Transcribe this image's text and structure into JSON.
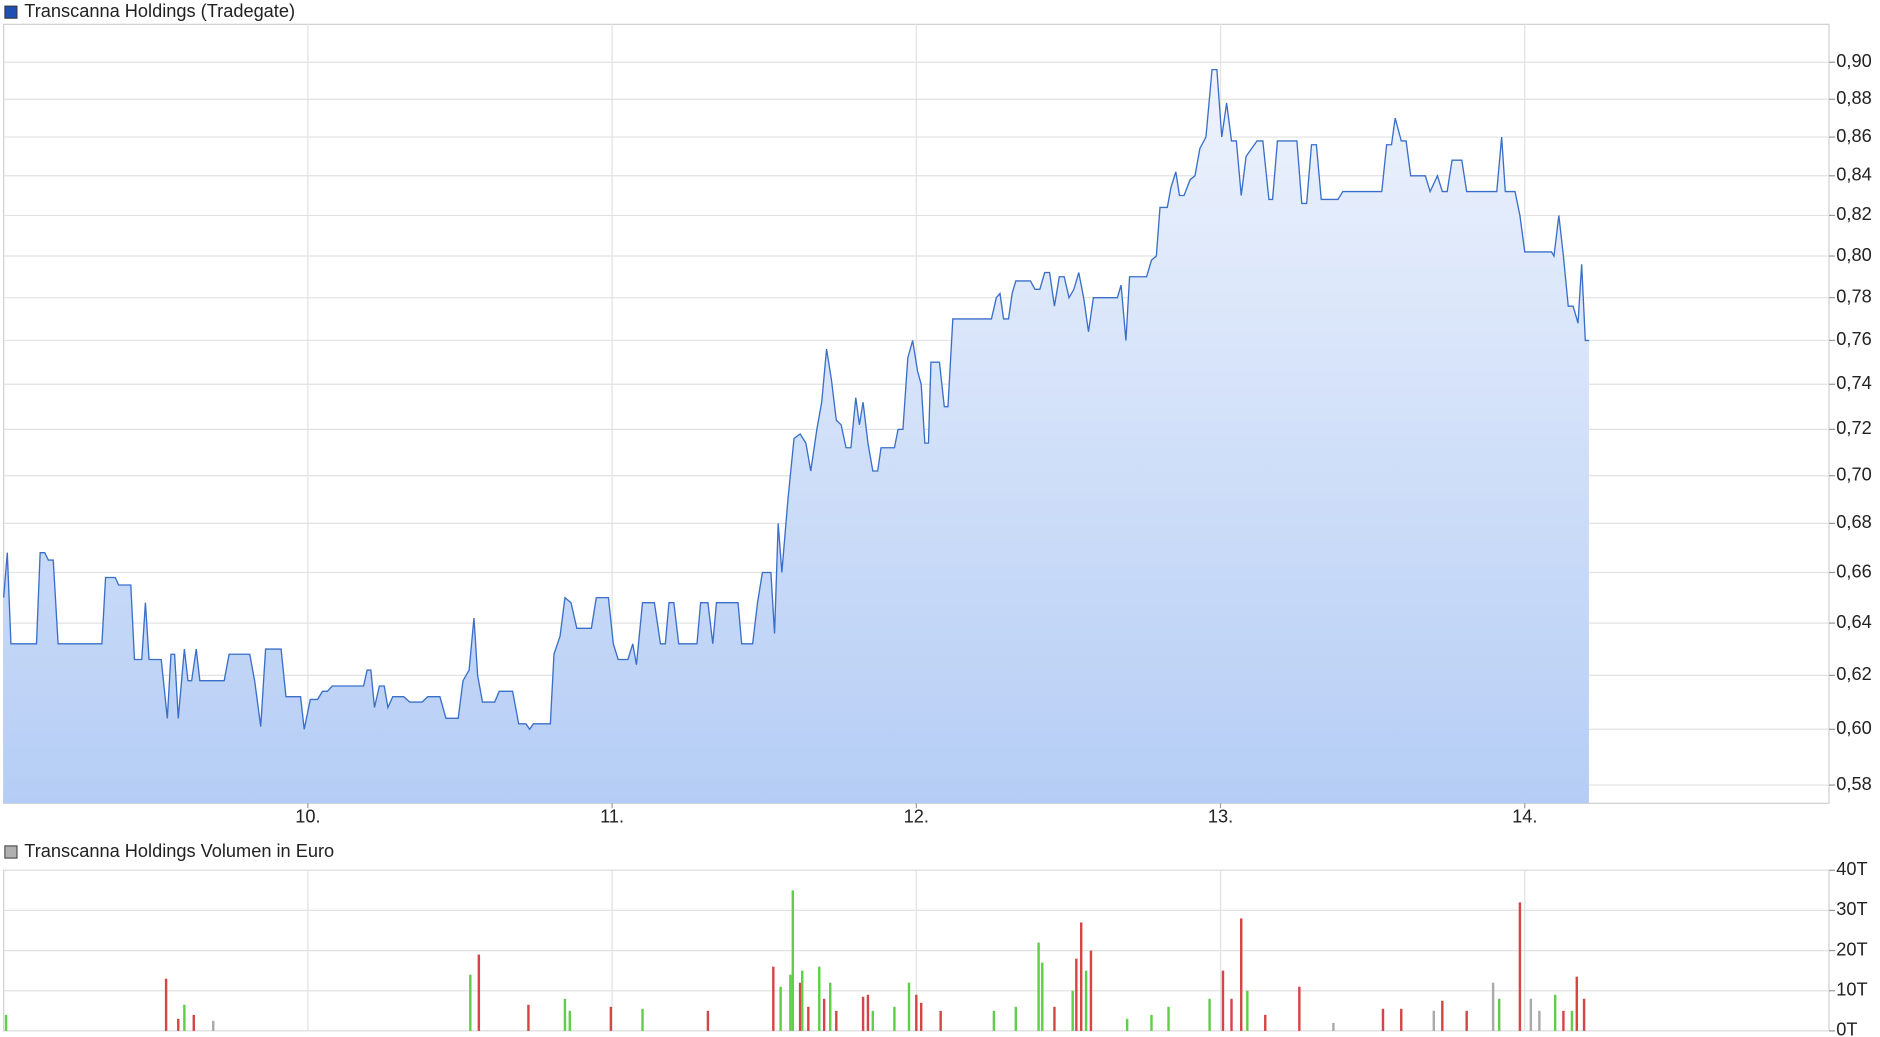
{
  "chart_data": [
    {
      "type": "area",
      "title": "Transcanna Holdings (Tradegate)",
      "legend_color": "#1f4fb0",
      "color": "#3a6fc9",
      "fill_top": "#eef3fd",
      "fill_bottom": "#b5cdf5",
      "log": true,
      "grid": true,
      "x": [
        9.0,
        9.012,
        9.024,
        9.108,
        9.12,
        9.135,
        9.147,
        9.163,
        9.179,
        9.323,
        9.335,
        9.367,
        9.378,
        9.418,
        9.43,
        9.454,
        9.466,
        9.478,
        9.518,
        9.538,
        9.55,
        9.562,
        9.574,
        9.594,
        9.606,
        9.618,
        9.633,
        9.645,
        9.725,
        9.741,
        9.809,
        9.825,
        9.845,
        9.861,
        9.912,
        9.928,
        9.976,
        9.988,
        10.008,
        10.032,
        10.048,
        10.064,
        10.08,
        10.183,
        10.195,
        10.207,
        10.219,
        10.235,
        10.251,
        10.263,
        10.279,
        10.315,
        10.335,
        10.375,
        10.394,
        10.434,
        10.454,
        10.494,
        10.51,
        10.53,
        10.546,
        10.558,
        10.574,
        10.614,
        10.629,
        10.673,
        10.693,
        10.717,
        10.729,
        10.741,
        10.797,
        10.809,
        10.829,
        10.845,
        10.865,
        10.884,
        10.932,
        10.948,
        10.988,
        11.004,
        11.02,
        11.052,
        11.068,
        11.08,
        11.1,
        11.139,
        11.159,
        11.175,
        11.187,
        11.203,
        11.219,
        11.279,
        11.291,
        11.315,
        11.331,
        11.343,
        11.414,
        11.426,
        11.462,
        11.478,
        11.494,
        11.522,
        11.534,
        11.546,
        11.558,
        11.578,
        11.598,
        11.618,
        11.637,
        11.653,
        11.673,
        11.689,
        11.705,
        11.721,
        11.737,
        11.753,
        11.769,
        11.785,
        11.801,
        11.813,
        11.825,
        11.841,
        11.857,
        11.873,
        11.884,
        11.928,
        11.94,
        11.956,
        11.972,
        11.988,
        12.004,
        12.016,
        12.028,
        12.04,
        12.048,
        12.076,
        12.092,
        12.104,
        12.12,
        12.247,
        12.263,
        12.275,
        12.287,
        12.303,
        12.315,
        12.327,
        12.375,
        12.39,
        12.406,
        12.422,
        12.438,
        12.454,
        12.47,
        12.486,
        12.502,
        12.518,
        12.534,
        12.55,
        12.566,
        12.582,
        12.661,
        12.673,
        12.689,
        12.701,
        12.757,
        12.773,
        12.789,
        12.801,
        12.825,
        12.837,
        12.853,
        12.865,
        12.88,
        12.9,
        12.916,
        12.932,
        12.952,
        12.972,
        12.988,
        13.004,
        13.02,
        13.036,
        13.052,
        13.068,
        13.084,
        13.12,
        13.139,
        13.159,
        13.171,
        13.187,
        13.251,
        13.267,
        13.283,
        13.299,
        13.315,
        13.331,
        13.386,
        13.402,
        13.53,
        13.546,
        13.562,
        13.574,
        13.594,
        13.61,
        13.625,
        13.673,
        13.689,
        13.713,
        13.729,
        13.745,
        13.761,
        13.793,
        13.809,
        13.908,
        13.924,
        13.936,
        13.968,
        13.984,
        14.0,
        14.088,
        14.096,
        14.112,
        14.127,
        14.143,
        14.159,
        14.175,
        14.187,
        14.199,
        14.211
      ],
      "values": [
        0.65,
        0.668,
        0.632,
        0.632,
        0.668,
        0.668,
        0.665,
        0.665,
        0.632,
        0.632,
        0.658,
        0.658,
        0.655,
        0.655,
        0.626,
        0.626,
        0.648,
        0.626,
        0.626,
        0.604,
        0.628,
        0.628,
        0.604,
        0.63,
        0.618,
        0.618,
        0.63,
        0.618,
        0.618,
        0.628,
        0.628,
        0.618,
        0.601,
        0.63,
        0.63,
        0.612,
        0.612,
        0.6,
        0.611,
        0.611,
        0.614,
        0.614,
        0.616,
        0.616,
        0.622,
        0.622,
        0.608,
        0.616,
        0.616,
        0.608,
        0.612,
        0.612,
        0.61,
        0.61,
        0.612,
        0.612,
        0.604,
        0.604,
        0.618,
        0.622,
        0.642,
        0.62,
        0.61,
        0.61,
        0.614,
        0.614,
        0.602,
        0.602,
        0.6,
        0.602,
        0.602,
        0.628,
        0.635,
        0.65,
        0.648,
        0.638,
        0.638,
        0.65,
        0.65,
        0.632,
        0.626,
        0.626,
        0.632,
        0.624,
        0.648,
        0.648,
        0.632,
        0.632,
        0.648,
        0.648,
        0.632,
        0.632,
        0.648,
        0.648,
        0.632,
        0.648,
        0.648,
        0.632,
        0.632,
        0.648,
        0.66,
        0.66,
        0.636,
        0.68,
        0.66,
        0.69,
        0.716,
        0.718,
        0.714,
        0.702,
        0.72,
        0.732,
        0.756,
        0.742,
        0.724,
        0.722,
        0.712,
        0.712,
        0.734,
        0.722,
        0.732,
        0.714,
        0.702,
        0.702,
        0.712,
        0.712,
        0.72,
        0.72,
        0.752,
        0.76,
        0.746,
        0.74,
        0.714,
        0.714,
        0.75,
        0.75,
        0.73,
        0.73,
        0.77,
        0.77,
        0.78,
        0.782,
        0.77,
        0.77,
        0.782,
        0.788,
        0.788,
        0.784,
        0.784,
        0.792,
        0.792,
        0.776,
        0.79,
        0.79,
        0.78,
        0.784,
        0.792,
        0.78,
        0.764,
        0.78,
        0.78,
        0.786,
        0.76,
        0.79,
        0.79,
        0.798,
        0.8,
        0.824,
        0.824,
        0.834,
        0.842,
        0.83,
        0.83,
        0.838,
        0.84,
        0.854,
        0.86,
        0.896,
        0.896,
        0.86,
        0.878,
        0.858,
        0.858,
        0.83,
        0.85,
        0.858,
        0.858,
        0.828,
        0.828,
        0.858,
        0.858,
        0.826,
        0.826,
        0.856,
        0.856,
        0.828,
        0.828,
        0.832,
        0.832,
        0.856,
        0.856,
        0.87,
        0.858,
        0.858,
        0.84,
        0.84,
        0.832,
        0.84,
        0.832,
        0.832,
        0.848,
        0.848,
        0.832,
        0.832,
        0.86,
        0.832,
        0.832,
        0.82,
        0.802,
        0.802,
        0.8,
        0.82,
        0.8,
        0.776,
        0.776,
        0.768,
        0.796,
        0.76,
        0.76
      ],
      "xlim": [
        9,
        15
      ],
      "xticks": [
        {
          "value": 10,
          "label": "10."
        },
        {
          "value": 11,
          "label": "11."
        },
        {
          "value": 12,
          "label": "12."
        },
        {
          "value": 13,
          "label": "13."
        },
        {
          "value": 14,
          "label": "14."
        }
      ],
      "ylim": [
        0.5736,
        0.921
      ],
      "yticks": [
        {
          "value": 0.58,
          "label": "0,58"
        },
        {
          "value": 0.6,
          "label": "0,60"
        },
        {
          "value": 0.62,
          "label": "0,62"
        },
        {
          "value": 0.64,
          "label": "0,64"
        },
        {
          "value": 0.66,
          "label": "0,66"
        },
        {
          "value": 0.68,
          "label": "0,68"
        },
        {
          "value": 0.7,
          "label": "0,70"
        },
        {
          "value": 0.72,
          "label": "0,72"
        },
        {
          "value": 0.74,
          "label": "0,74"
        },
        {
          "value": 0.76,
          "label": "0,76"
        },
        {
          "value": 0.78,
          "label": "0,78"
        },
        {
          "value": 0.8,
          "label": "0,80"
        },
        {
          "value": 0.82,
          "label": "0,82"
        },
        {
          "value": 0.84,
          "label": "0,84"
        },
        {
          "value": 0.86,
          "label": "0,86"
        },
        {
          "value": 0.88,
          "label": "0,88"
        },
        {
          "value": 0.9,
          "label": "0,90"
        }
      ]
    },
    {
      "type": "bar",
      "title": "Transcanna Holdings Volumen in Euro",
      "legend_color": "#b0b0b0",
      "grid": true,
      "x": [
        9.008,
        9.534,
        9.574,
        9.594,
        9.625,
        9.689,
        10.534,
        10.562,
        10.725,
        10.845,
        10.861,
        10.996,
        11.1,
        11.315,
        11.53,
        11.554,
        11.586,
        11.594,
        11.618,
        11.625,
        11.645,
        11.681,
        11.697,
        11.717,
        11.737,
        11.825,
        11.841,
        11.857,
        11.928,
        11.976,
        12.0,
        12.016,
        12.08,
        12.255,
        12.327,
        12.402,
        12.414,
        12.454,
        12.514,
        12.526,
        12.542,
        12.558,
        12.574,
        12.693,
        12.773,
        12.829,
        12.964,
        13.008,
        13.036,
        13.068,
        13.088,
        13.147,
        13.259,
        13.371,
        13.534,
        13.594,
        13.701,
        13.729,
        13.809,
        13.896,
        13.916,
        13.984,
        14.02,
        14.048,
        14.1,
        14.127,
        14.155,
        14.171,
        14.195
      ],
      "values": [
        4000,
        13000,
        3000,
        6500,
        4000,
        2500,
        14000,
        19000,
        6500,
        8000,
        5000,
        6000,
        5500,
        5000,
        16000,
        11000,
        14000,
        35000,
        12000,
        15000,
        6000,
        16000,
        8000,
        12000,
        5000,
        8500,
        9000,
        5000,
        6000,
        12000,
        9000,
        7000,
        5000,
        5000,
        6000,
        22000,
        17000,
        6000,
        10000,
        18000,
        27000,
        15000,
        20000,
        3000,
        4000,
        6000,
        8000,
        15000,
        8000,
        28000,
        10000,
        4000,
        11000,
        2000,
        5500,
        5500,
        5000,
        7500,
        5000,
        12000,
        8000,
        32000,
        8000,
        5000,
        9000,
        5000,
        5000,
        13500,
        8000
      ],
      "bar_colors": [
        "#5fcf4a",
        "#d64545",
        "#d64545",
        "#5fcf4a",
        "#d64545",
        "#aaaaaa",
        "#5fcf4a",
        "#d64545",
        "#d64545",
        "#5fcf4a",
        "#5fcf4a",
        "#d64545",
        "#5fcf4a",
        "#d64545",
        "#d64545",
        "#5fcf4a",
        "#5fcf4a",
        "#5fcf4a",
        "#d64545",
        "#5fcf4a",
        "#d64545",
        "#5fcf4a",
        "#d64545",
        "#5fcf4a",
        "#d64545",
        "#d64545",
        "#d64545",
        "#5fcf4a",
        "#5fcf4a",
        "#5fcf4a",
        "#d64545",
        "#d64545",
        "#d64545",
        "#5fcf4a",
        "#5fcf4a",
        "#5fcf4a",
        "#5fcf4a",
        "#d64545",
        "#5fcf4a",
        "#d64545",
        "#d64545",
        "#5fcf4a",
        "#d64545",
        "#5fcf4a",
        "#5fcf4a",
        "#5fcf4a",
        "#5fcf4a",
        "#d64545",
        "#d64545",
        "#d64545",
        "#5fcf4a",
        "#d64545",
        "#d64545",
        "#aaaaaa",
        "#d64545",
        "#d64545",
        "#aaaaaa",
        "#d64545",
        "#d64545",
        "#aaaaaa",
        "#5fcf4a",
        "#d64545",
        "#aaaaaa",
        "#aaaaaa",
        "#5fcf4a",
        "#d64545",
        "#5fcf4a",
        "#d64545",
        "#d64545"
      ],
      "xlim": [
        9,
        15
      ],
      "ylim": [
        0,
        40000
      ],
      "yticks": [
        {
          "value": 0,
          "label": "0T"
        },
        {
          "value": 10000,
          "label": "10T"
        },
        {
          "value": 20000,
          "label": "20T"
        },
        {
          "value": 30000,
          "label": "30T"
        },
        {
          "value": 40000,
          "label": "40T"
        }
      ]
    }
  ]
}
